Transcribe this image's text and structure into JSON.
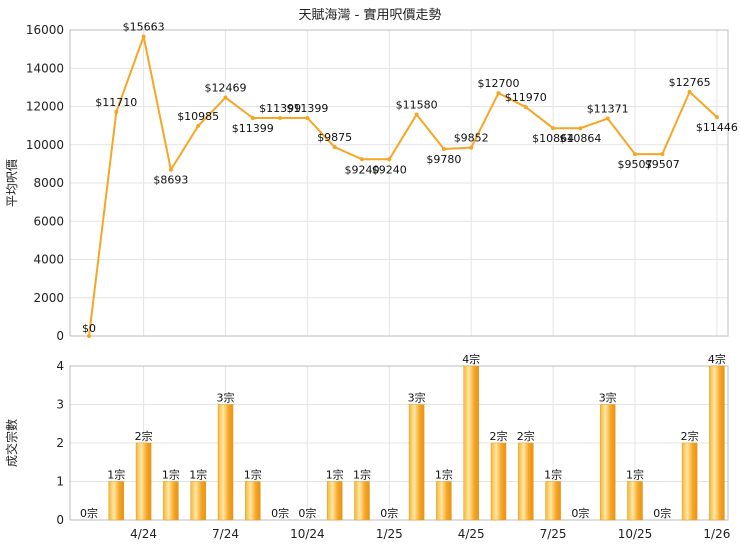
{
  "chart_data": [
    {
      "type": "line",
      "title": "天賦海灣 - 實用呎價走勢",
      "ylabel": "平均呎價",
      "xlabel": "",
      "ylim": [
        0,
        16000
      ],
      "y_ticks": [
        0,
        2000,
        4000,
        6000,
        8000,
        10000,
        12000,
        14000,
        16000
      ],
      "grid": true,
      "color": "#f6a623",
      "values": [
        0,
        11710,
        15663,
        8693,
        10985,
        12469,
        11399,
        11399,
        11399,
        9875,
        9240,
        9240,
        11580,
        9780,
        9852,
        12700,
        11970,
        10864,
        10864,
        11371,
        9507,
        9507,
        12765,
        11446
      ],
      "labels": [
        "$0",
        "$11710",
        "$15663",
        "$8693",
        "$10985",
        "$12469",
        "$11399",
        "$11399",
        "$11399",
        "$9875",
        "$9240",
        "$9240",
        "$11580",
        "$9780",
        "$9852",
        "$12700",
        "$11970",
        "$10864",
        "$10864",
        "$11371",
        "$9507",
        "$9507",
        "$12765",
        "$11446"
      ]
    },
    {
      "type": "bar",
      "title": "",
      "ylabel": "成交宗數",
      "xlabel": "",
      "ylim": [
        0,
        4
      ],
      "y_ticks": [
        0,
        1,
        2,
        3,
        4
      ],
      "grid": true,
      "color": "#f6a623",
      "values": [
        0,
        1,
        2,
        1,
        1,
        3,
        1,
        0,
        0,
        1,
        1,
        0,
        3,
        1,
        4,
        2,
        2,
        1,
        0,
        3,
        1,
        0,
        2,
        4
      ],
      "labels": [
        "0宗",
        "1宗",
        "2宗",
        "1宗",
        "1宗",
        "3宗",
        "1宗",
        "0宗",
        "0宗",
        "1宗",
        "1宗",
        "0宗",
        "3宗",
        "1宗",
        "4宗",
        "2宗",
        "2宗",
        "1宗",
        "0宗",
        "3宗",
        "1宗",
        "0宗",
        "2宗",
        "4宗"
      ]
    }
  ],
  "x_tick_labels": [
    "4/24",
    "7/24",
    "10/24",
    "1/25",
    "4/25",
    "7/25",
    "10/25",
    "1/26"
  ],
  "x_tick_indices": [
    2,
    5,
    8,
    11,
    14,
    17,
    20,
    23
  ]
}
